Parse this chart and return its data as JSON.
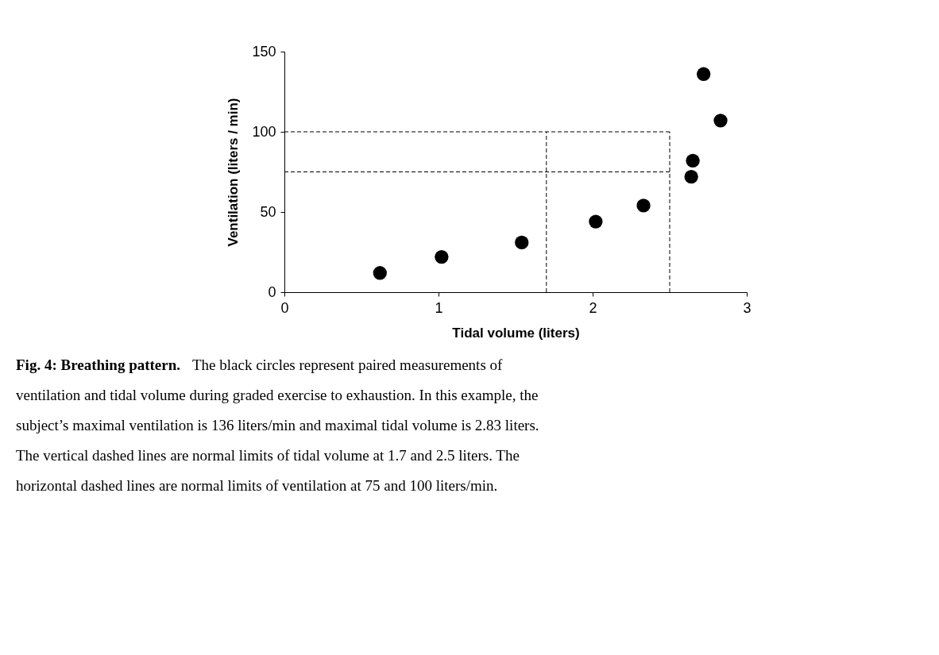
{
  "chart_data": {
    "type": "scatter",
    "xlabel": "Tidal volume (liters)",
    "ylabel": "Ventilation (liters / min)",
    "x": [
      0.62,
      1.02,
      1.54,
      2.02,
      2.33,
      2.64,
      2.65,
      2.72,
      2.83
    ],
    "series": [
      {
        "color": "#000000",
        "values": [
          12,
          22,
          31,
          44,
          54,
          72,
          82,
          136,
          107
        ]
      }
    ],
    "xlim": [
      0,
      3
    ],
    "xticks": [
      0,
      1,
      2,
      3
    ],
    "ylim": [
      0,
      150
    ],
    "yticks": [
      0,
      50,
      100,
      150
    ],
    "marker": "circle",
    "grid": false,
    "ref_lines": [
      {
        "axis": "x",
        "value": 1.7,
        "line_style": "dashed",
        "color": "#000000"
      },
      {
        "axis": "x",
        "value": 2.5,
        "line_style": "dashed",
        "color": "#000000"
      },
      {
        "axis": "y",
        "value": 75,
        "line_style": "dashed",
        "color": "#000000"
      },
      {
        "axis": "y",
        "value": 100,
        "line_style": "dashed",
        "color": "#000000"
      }
    ],
    "annotations": [
      "Fig. 4:  Breathing pattern.",
      "The black circles represent paired measurements of ventilation and tidal volume during graded exercise to exhaustion.  In this example, the subject’s maximal ventilation is 136 liters/min and maximal tidal volume is 2.83 liters.  The vertical dashed lines are normal limits of tidal volume at 1.7 and 2.5 liters.  The horizontal dashed lines are normal limits of ventilation at 75 and 100 liters/min."
    ]
  }
}
